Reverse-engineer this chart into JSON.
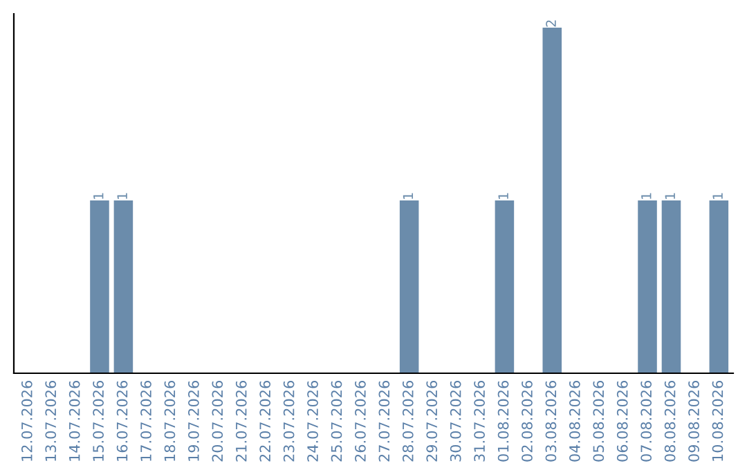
{
  "chart_data": {
    "type": "bar",
    "categories": [
      "12.07.2026",
      "13.07.2026",
      "14.07.2026",
      "15.07.2026",
      "16.07.2026",
      "17.07.2026",
      "18.07.2026",
      "19.07.2026",
      "20.07.2026",
      "21.07.2026",
      "22.07.2026",
      "23.07.2026",
      "24.07.2026",
      "25.07.2026",
      "26.07.2026",
      "27.07.2026",
      "28.07.2026",
      "29.07.2026",
      "30.07.2026",
      "31.07.2026",
      "01.08.2026",
      "02.08.2026",
      "03.08.2026",
      "04.08.2026",
      "05.08.2026",
      "06.08.2026",
      "07.08.2026",
      "08.08.2026",
      "09.08.2026",
      "10.08.2026"
    ],
    "values": [
      0,
      0,
      0,
      1,
      1,
      0,
      0,
      0,
      0,
      0,
      0,
      0,
      0,
      0,
      0,
      0,
      1,
      0,
      0,
      0,
      1,
      0,
      2,
      0,
      0,
      0,
      1,
      1,
      0,
      1
    ],
    "value_labels": [
      null,
      null,
      null,
      "1",
      "1",
      null,
      null,
      null,
      null,
      null,
      null,
      null,
      null,
      null,
      null,
      null,
      "1",
      null,
      null,
      null,
      "1",
      null,
      "2",
      null,
      null,
      null,
      "1",
      "1",
      null,
      "1"
    ],
    "color": "#6b8cab",
    "grid": false,
    "legend": false
  }
}
